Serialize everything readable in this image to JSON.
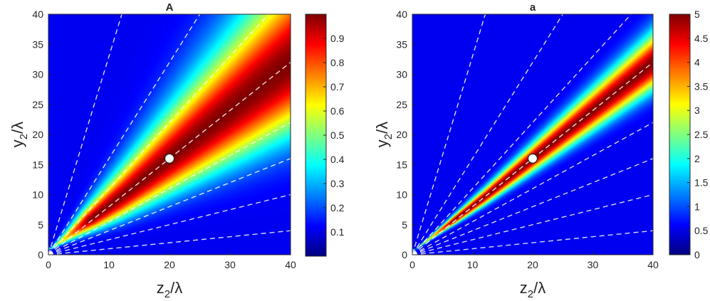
{
  "chart_data": [
    {
      "type": "heatmap",
      "title": "A",
      "xlabel": {
        "base": "z",
        "sub": "2",
        "rest": "/λ"
      },
      "ylabel": {
        "base": "y",
        "sub": "2",
        "rest": "/λ"
      },
      "xlim": [
        0,
        40
      ],
      "ylim": [
        0,
        40
      ],
      "xticks": [
        "0",
        "10",
        "20",
        "30",
        "40"
      ],
      "yticks": [
        "0",
        "5",
        "10",
        "15",
        "20",
        "25",
        "30",
        "35",
        "40"
      ],
      "colorbar": {
        "range": [
          0,
          1
        ],
        "ticks": [
          "0.1",
          "0.2",
          "0.3",
          "0.4",
          "0.5",
          "0.6",
          "0.7",
          "0.8",
          "0.9"
        ],
        "colormap": "jet"
      },
      "beam": {
        "slope": 0.8,
        "width": 0.2,
        "max_value": 1.0,
        "origin_y": 0.7
      },
      "dashed_line_slopes": [
        0.1,
        0.25,
        0.4,
        0.55,
        0.8,
        1.1,
        1.6,
        3.3
      ],
      "marker": {
        "x": 20,
        "y": 16
      }
    },
    {
      "type": "heatmap",
      "title": "a",
      "xlabel": {
        "base": "z",
        "sub": "2",
        "rest": "/λ"
      },
      "ylabel": {
        "base": "y",
        "sub": "2",
        "rest": "/λ"
      },
      "xlim": [
        0,
        40
      ],
      "ylim": [
        0,
        40
      ],
      "xticks": [
        "0",
        "10",
        "20",
        "30",
        "40"
      ],
      "yticks": [
        "0",
        "5",
        "10",
        "15",
        "20",
        "25",
        "30",
        "35",
        "40"
      ],
      "colorbar": {
        "range": [
          0,
          5
        ],
        "ticks": [
          "0",
          "0.5",
          "1",
          "1.5",
          "2",
          "2.5",
          "3",
          "3.5",
          "4",
          "4.5",
          "5"
        ],
        "colormap": "jet"
      },
      "beam": {
        "slope": 0.8,
        "width": 0.07,
        "max_value": 5.0,
        "origin_y": 0.5
      },
      "dashed_line_slopes": [
        0.1,
        0.25,
        0.4,
        0.55,
        0.8,
        1.1,
        1.6,
        3.3
      ],
      "marker": {
        "x": 20,
        "y": 16
      }
    }
  ]
}
